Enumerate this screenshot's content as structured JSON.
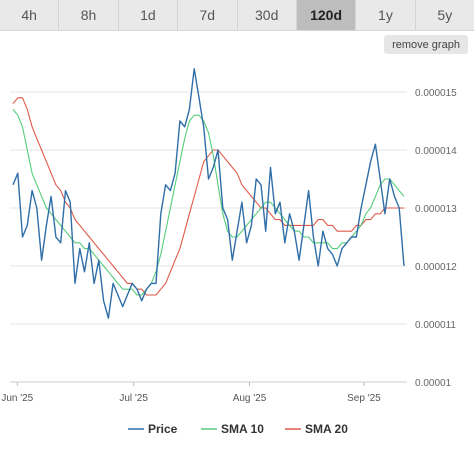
{
  "tabs": [
    {
      "label": "4h",
      "active": false
    },
    {
      "label": "8h",
      "active": false
    },
    {
      "label": "1d",
      "active": false
    },
    {
      "label": "7d",
      "active": false
    },
    {
      "label": "30d",
      "active": false
    },
    {
      "label": "120d",
      "active": true
    },
    {
      "label": "1y",
      "active": false
    },
    {
      "label": "5y",
      "active": false
    }
  ],
  "remove_graph_label": "remove graph",
  "chart_data": {
    "type": "line",
    "ylim": [
      1e-05,
      1.55e-05
    ],
    "y_ticks": [
      {
        "value": 1e-05,
        "label": "0.00001"
      },
      {
        "value": 1.1e-05,
        "label": "0.000011"
      },
      {
        "value": 1.2e-05,
        "label": "0.000012"
      },
      {
        "value": 1.3e-05,
        "label": "0.000013"
      },
      {
        "value": 1.4e-05,
        "label": "0.000014"
      },
      {
        "value": 1.5e-05,
        "label": "0.000015"
      }
    ],
    "x_ticks": [
      "Jun '25",
      "Jul '25",
      "Aug '25",
      "Sep '25"
    ],
    "grid": true,
    "legend_position": "bottom",
    "colors": {
      "price": "#2f6ea8",
      "sma10": "#55cc7a",
      "sma20": "#e05a4a"
    },
    "series": [
      {
        "name": "Price",
        "values": [
          1.34e-05,
          1.36e-05,
          1.25e-05,
          1.27e-05,
          1.33e-05,
          1.3e-05,
          1.21e-05,
          1.27e-05,
          1.32e-05,
          1.25e-05,
          1.24e-05,
          1.33e-05,
          1.31e-05,
          1.17e-05,
          1.23e-05,
          1.19e-05,
          1.24e-05,
          1.17e-05,
          1.21e-05,
          1.14e-05,
          1.11e-05,
          1.17e-05,
          1.15e-05,
          1.13e-05,
          1.15e-05,
          1.17e-05,
          1.16e-05,
          1.14e-05,
          1.16e-05,
          1.17e-05,
          1.17e-05,
          1.29e-05,
          1.34e-05,
          1.33e-05,
          1.36e-05,
          1.45e-05,
          1.44e-05,
          1.47e-05,
          1.54e-05,
          1.49e-05,
          1.44e-05,
          1.35e-05,
          1.37e-05,
          1.4e-05,
          1.3e-05,
          1.28e-05,
          1.21e-05,
          1.26e-05,
          1.31e-05,
          1.24e-05,
          1.27e-05,
          1.35e-05,
          1.34e-05,
          1.26e-05,
          1.37e-05,
          1.29e-05,
          1.31e-05,
          1.24e-05,
          1.29e-05,
          1.26e-05,
          1.21e-05,
          1.27e-05,
          1.33e-05,
          1.25e-05,
          1.2e-05,
          1.26e-05,
          1.23e-05,
          1.22e-05,
          1.2e-05,
          1.23e-05,
          1.24e-05,
          1.25e-05,
          1.25e-05,
          1.3e-05,
          1.34e-05,
          1.38e-05,
          1.41e-05,
          1.35e-05,
          1.29e-05,
          1.35e-05,
          1.32e-05,
          1.3e-05,
          1.2e-05
        ]
      },
      {
        "name": "SMA 10",
        "values": [
          1.47e-05,
          1.46e-05,
          1.44e-05,
          1.4e-05,
          1.36e-05,
          1.34e-05,
          1.32e-05,
          1.3e-05,
          1.29e-05,
          1.28e-05,
          1.27e-05,
          1.26e-05,
          1.25e-05,
          1.24e-05,
          1.24e-05,
          1.23e-05,
          1.23e-05,
          1.22e-05,
          1.21e-05,
          1.2e-05,
          1.19e-05,
          1.18e-05,
          1.17e-05,
          1.16e-05,
          1.16e-05,
          1.16e-05,
          1.15e-05,
          1.15e-05,
          1.16e-05,
          1.17e-05,
          1.19e-05,
          1.22e-05,
          1.26e-05,
          1.3e-05,
          1.34e-05,
          1.38e-05,
          1.42e-05,
          1.45e-05,
          1.46e-05,
          1.46e-05,
          1.45e-05,
          1.43e-05,
          1.39e-05,
          1.34e-05,
          1.29e-05,
          1.26e-05,
          1.25e-05,
          1.25e-05,
          1.26e-05,
          1.27e-05,
          1.28e-05,
          1.29e-05,
          1.3e-05,
          1.31e-05,
          1.31e-05,
          1.3e-05,
          1.29e-05,
          1.28e-05,
          1.27e-05,
          1.26e-05,
          1.26e-05,
          1.25e-05,
          1.25e-05,
          1.24e-05,
          1.24e-05,
          1.24e-05,
          1.24e-05,
          1.23e-05,
          1.23e-05,
          1.24e-05,
          1.24e-05,
          1.25e-05,
          1.26e-05,
          1.27e-05,
          1.29e-05,
          1.3e-05,
          1.32e-05,
          1.34e-05,
          1.35e-05,
          1.35e-05,
          1.34e-05,
          1.33e-05,
          1.32e-05
        ]
      },
      {
        "name": "SMA 20",
        "values": [
          1.48e-05,
          1.49e-05,
          1.49e-05,
          1.47e-05,
          1.44e-05,
          1.42e-05,
          1.4e-05,
          1.38e-05,
          1.36e-05,
          1.34e-05,
          1.33e-05,
          1.31e-05,
          1.3e-05,
          1.28e-05,
          1.27e-05,
          1.26e-05,
          1.25e-05,
          1.24e-05,
          1.23e-05,
          1.22e-05,
          1.21e-05,
          1.2e-05,
          1.19e-05,
          1.18e-05,
          1.17e-05,
          1.17e-05,
          1.16e-05,
          1.16e-05,
          1.15e-05,
          1.15e-05,
          1.15e-05,
          1.16e-05,
          1.17e-05,
          1.19e-05,
          1.21e-05,
          1.23e-05,
          1.26e-05,
          1.29e-05,
          1.32e-05,
          1.35e-05,
          1.38e-05,
          1.39e-05,
          1.4e-05,
          1.4e-05,
          1.39e-05,
          1.38e-05,
          1.37e-05,
          1.36e-05,
          1.34e-05,
          1.33e-05,
          1.32e-05,
          1.31e-05,
          1.3e-05,
          1.3e-05,
          1.29e-05,
          1.28e-05,
          1.28e-05,
          1.27e-05,
          1.27e-05,
          1.27e-05,
          1.27e-05,
          1.27e-05,
          1.27e-05,
          1.27e-05,
          1.28e-05,
          1.28e-05,
          1.27e-05,
          1.27e-05,
          1.26e-05,
          1.26e-05,
          1.26e-05,
          1.26e-05,
          1.27e-05,
          1.27e-05,
          1.28e-05,
          1.28e-05,
          1.29e-05,
          1.29e-05,
          1.3e-05,
          1.3e-05,
          1.3e-05,
          1.3e-05,
          1.3e-05
        ]
      }
    ]
  }
}
